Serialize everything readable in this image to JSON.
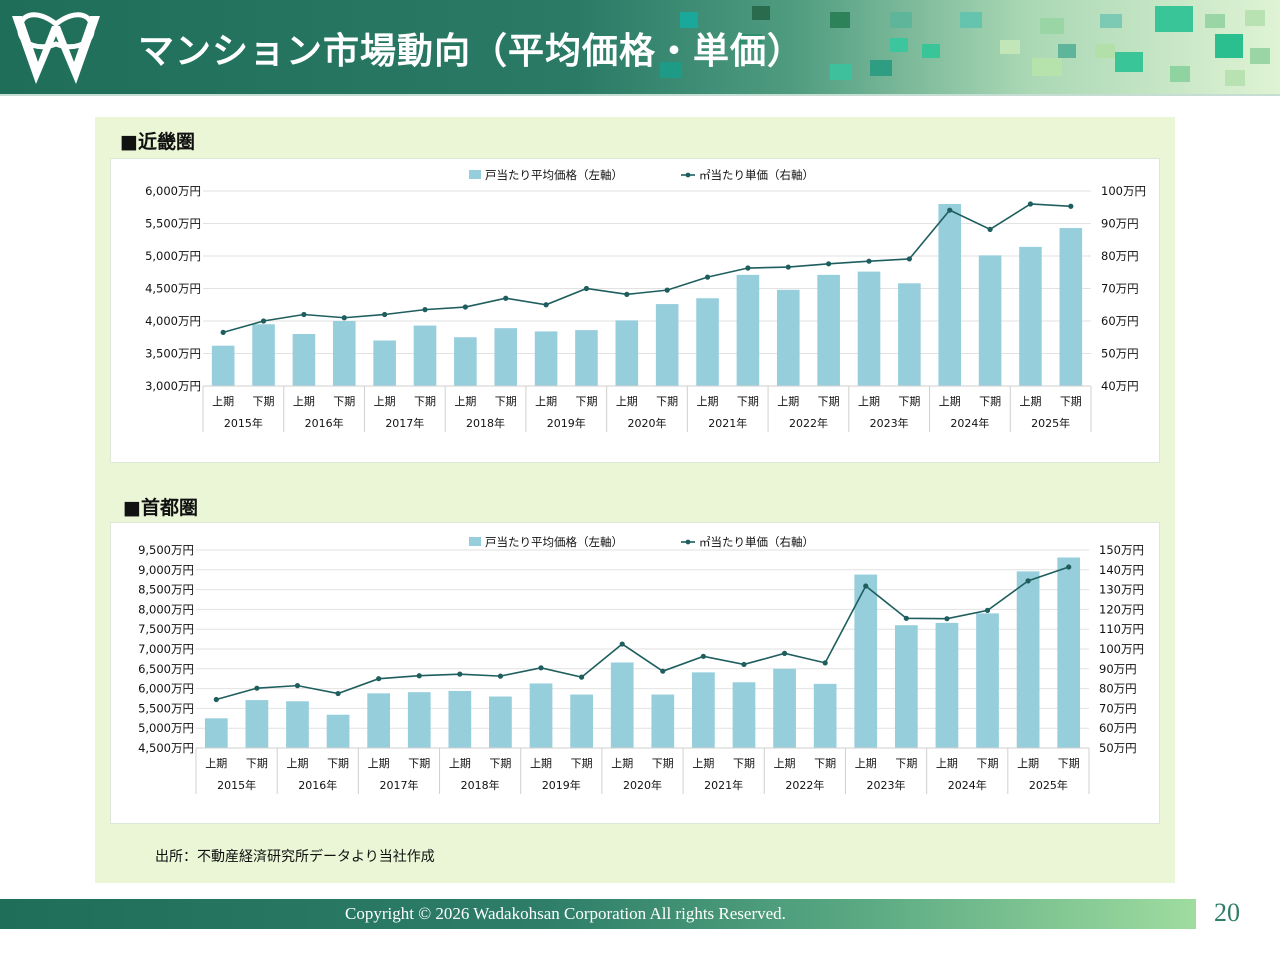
{
  "header": {
    "title": "マンション市場動向（平均価格・単価）"
  },
  "sections": {
    "kinki": "■近畿圏",
    "shuto": "■首都圏"
  },
  "source": "出所：不動産経済研究所データより当社作成",
  "footer": {
    "copyright": "Copyright © 2026  Wadakohsan Corporation All rights Reserved.",
    "page": "20"
  },
  "colors": {
    "bar": "#96cedc",
    "line": "#1f5e5e",
    "header": "#226f5b",
    "panel": "#ebf6d6"
  },
  "chart_data": [
    {
      "type": "bar",
      "id": "kinki",
      "legend": [
        "戸当たり平均価格（左軸）",
        "㎡当たり単価（右軸）"
      ],
      "categories": [
        "上期",
        "下期",
        "上期",
        "下期",
        "上期",
        "下期",
        "上期",
        "下期",
        "上期",
        "下期",
        "上期",
        "下期",
        "上期",
        "下期",
        "上期",
        "下期",
        "上期",
        "下期",
        "上期",
        "下期",
        "上期",
        "下期"
      ],
      "years": [
        "2015年",
        "2016年",
        "2017年",
        "2018年",
        "2019年",
        "2020年",
        "2021年",
        "2022年",
        "2023年",
        "2024年",
        "2025年"
      ],
      "series": [
        {
          "name": "戸当たり平均価格（左軸）",
          "axis": "left",
          "values": [
            3620,
            3950,
            3800,
            4000,
            3700,
            3930,
            3750,
            3890,
            3840,
            3860,
            4010,
            4260,
            4350,
            4710,
            4480,
            4710,
            4760,
            4580,
            5800,
            5010,
            5140,
            5430
          ]
        },
        {
          "name": "㎡当たり単価（右軸）",
          "axis": "right",
          "values": [
            56.5,
            60.0,
            62.0,
            61.0,
            62.0,
            63.5,
            64.3,
            67.0,
            65.0,
            70.0,
            68.2,
            69.5,
            73.5,
            76.3,
            76.6,
            77.6,
            78.4,
            79.1,
            94.1,
            88.2,
            96.0,
            95.3
          ]
        }
      ],
      "ylim_left": [
        3000,
        6000
      ],
      "yticks_left": [
        "3,000万円",
        "3,500万円",
        "4,000万円",
        "4,500万円",
        "5,000万円",
        "5,500万円",
        "6,000万円"
      ],
      "ylim_right": [
        40,
        100
      ],
      "yticks_right": [
        "40万円",
        "50万円",
        "60万円",
        "70万円",
        "80万円",
        "90万円",
        "100万円"
      ]
    },
    {
      "type": "bar",
      "id": "shuto",
      "legend": [
        "戸当たり平均価格（左軸）",
        "㎡当たり単価（右軸）"
      ],
      "categories": [
        "上期",
        "下期",
        "上期",
        "下期",
        "上期",
        "下期",
        "上期",
        "下期",
        "上期",
        "下期",
        "上期",
        "下期",
        "上期",
        "下期",
        "上期",
        "下期",
        "上期",
        "下期",
        "上期",
        "下期",
        "上期",
        "下期"
      ],
      "years": [
        "2015年",
        "2016年",
        "2017年",
        "2018年",
        "2019年",
        "2020年",
        "2021年",
        "2022年",
        "2023年",
        "2024年",
        "2025年"
      ],
      "series": [
        {
          "name": "戸当たり平均価格（左軸）",
          "axis": "left",
          "values": [
            5250,
            5710,
            5680,
            5340,
            5880,
            5910,
            5940,
            5800,
            6130,
            5850,
            6660,
            5850,
            6410,
            6160,
            6500,
            6120,
            8880,
            7600,
            7660,
            7900,
            8960,
            9310
          ]
        },
        {
          "name": "㎡当たり単価（右軸）",
          "axis": "right",
          "values": [
            74.5,
            80.2,
            81.5,
            77.5,
            85.0,
            86.5,
            87.3,
            86.3,
            90.5,
            85.8,
            102.5,
            88.8,
            96.3,
            92.2,
            97.8,
            93.0,
            131.8,
            115.5,
            115.3,
            119.5,
            134.4,
            141.4
          ]
        }
      ],
      "ylim_left": [
        4500,
        9500
      ],
      "yticks_left": [
        "4,500万円",
        "5,000万円",
        "5,500万円",
        "6,000万円",
        "6,500万円",
        "7,000万円",
        "7,500万円",
        "8,000万円",
        "8,500万円",
        "9,000万円",
        "9,500万円"
      ],
      "ylim_right": [
        50,
        150
      ],
      "yticks_right": [
        "50万円",
        "60万円",
        "70万円",
        "80万円",
        "90万円",
        "100万円",
        "110万円",
        "120万円",
        "130万円",
        "140万円",
        "150万円"
      ]
    }
  ]
}
